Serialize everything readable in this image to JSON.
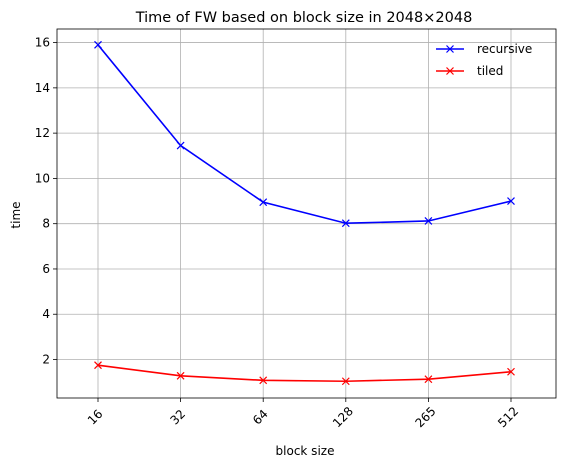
{
  "chart_data": {
    "type": "line",
    "title": "Time of FW based on block size in 2048×2048",
    "xlabel": "block size",
    "ylabel": "time",
    "categories": [
      "16",
      "32",
      "64",
      "128",
      "265",
      "512"
    ],
    "ylim": [
      0.3,
      16.6
    ],
    "yticks": [
      "2",
      "4",
      "6",
      "8",
      "10",
      "12",
      "14",
      "16"
    ],
    "grid": true,
    "legend_position": "top-right",
    "series": [
      {
        "name": "recursive",
        "color": "#0000ff",
        "marker": "x",
        "values": [
          15.9,
          11.45,
          8.95,
          8.02,
          8.12,
          9.0
        ]
      },
      {
        "name": "tiled",
        "color": "#ff0000",
        "marker": "x",
        "values": [
          1.75,
          1.28,
          1.08,
          1.04,
          1.13,
          1.46
        ]
      }
    ]
  }
}
